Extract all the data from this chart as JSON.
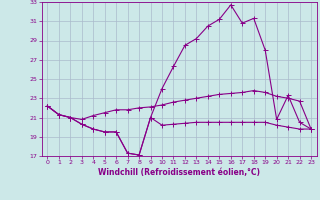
{
  "xlabel": "Windchill (Refroidissement éolien,°C)",
  "hours": [
    0,
    1,
    2,
    3,
    4,
    5,
    6,
    7,
    8,
    9,
    10,
    11,
    12,
    13,
    14,
    15,
    16,
    17,
    18,
    19,
    20,
    21,
    22,
    23
  ],
  "line_top": [
    22.2,
    21.3,
    21.0,
    20.3,
    19.8,
    19.5,
    19.5,
    17.3,
    17.1,
    21.0,
    24.0,
    26.3,
    28.5,
    29.2,
    30.5,
    31.2,
    32.7,
    30.8,
    31.3,
    28.0,
    20.8,
    23.3,
    20.5,
    19.8
  ],
  "line_mid": [
    22.2,
    21.3,
    21.0,
    20.8,
    21.2,
    21.5,
    21.8,
    21.8,
    22.0,
    22.1,
    22.3,
    22.6,
    22.8,
    23.0,
    23.2,
    23.4,
    23.5,
    23.6,
    23.8,
    23.6,
    23.2,
    23.0,
    22.7,
    19.8
  ],
  "line_bot": [
    22.2,
    21.3,
    21.0,
    20.3,
    19.8,
    19.5,
    19.5,
    17.3,
    17.1,
    21.0,
    20.2,
    20.3,
    20.4,
    20.5,
    20.5,
    20.5,
    20.5,
    20.5,
    20.5,
    20.5,
    20.2,
    20.0,
    19.8,
    19.8
  ],
  "line_color": "#880088",
  "bg_color": "#cce8e8",
  "grid_color": "#aabbcc",
  "ylim": [
    17,
    33
  ],
  "xlim_min": -0.5,
  "xlim_max": 23.5,
  "yticks": [
    17,
    19,
    21,
    23,
    25,
    27,
    29,
    31,
    33
  ],
  "xticks": [
    0,
    1,
    2,
    3,
    4,
    5,
    6,
    7,
    8,
    9,
    10,
    11,
    12,
    13,
    14,
    15,
    16,
    17,
    18,
    19,
    20,
    21,
    22,
    23
  ],
  "tick_fontsize": 4.5,
  "xlabel_fontsize": 5.5,
  "lw": 0.8,
  "ms": 1.8
}
